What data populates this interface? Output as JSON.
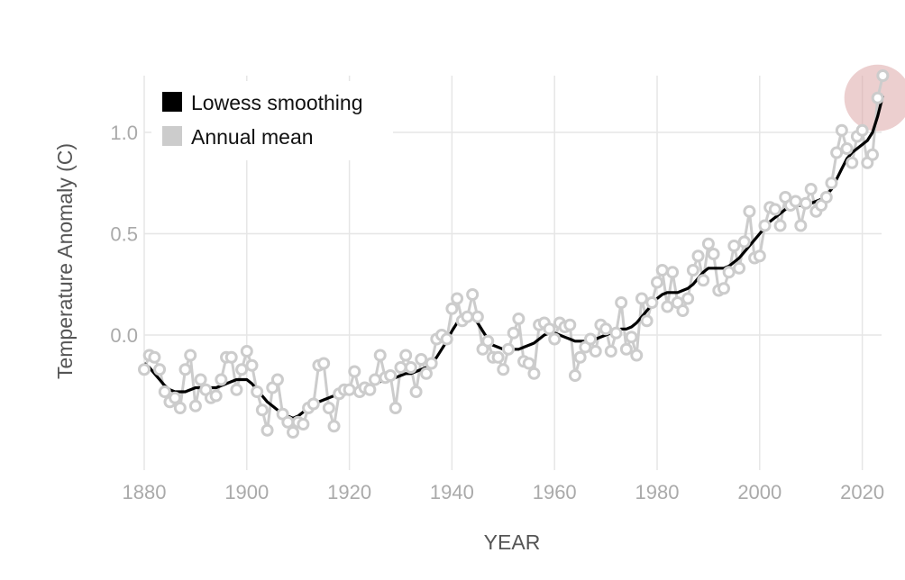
{
  "chart_data": {
    "type": "line",
    "title": "",
    "xlabel": "YEAR",
    "ylabel": "Temperature Anomaly (C)",
    "xlim": [
      1880,
      2024
    ],
    "ylim": [
      -0.6,
      1.3
    ],
    "xticks": [
      1880,
      1900,
      1920,
      1940,
      1960,
      1980,
      2000,
      2020
    ],
    "xtick_labels": [
      "1880",
      "1900",
      "1920",
      "1940",
      "1960",
      "1980",
      "2000",
      "2020"
    ],
    "yticks": [
      0.0,
      0.5,
      1.0
    ],
    "ytick_labels": [
      "0.0",
      "0.5",
      "1.0"
    ],
    "grid": true,
    "legend_position": "top-left",
    "x": [
      1880,
      1881,
      1882,
      1883,
      1884,
      1885,
      1886,
      1887,
      1888,
      1889,
      1890,
      1891,
      1892,
      1893,
      1894,
      1895,
      1896,
      1897,
      1898,
      1899,
      1900,
      1901,
      1902,
      1903,
      1904,
      1905,
      1906,
      1907,
      1908,
      1909,
      1910,
      1911,
      1912,
      1913,
      1914,
      1915,
      1916,
      1917,
      1918,
      1919,
      1920,
      1921,
      1922,
      1923,
      1924,
      1925,
      1926,
      1927,
      1928,
      1929,
      1930,
      1931,
      1932,
      1933,
      1934,
      1935,
      1936,
      1937,
      1938,
      1939,
      1940,
      1941,
      1942,
      1943,
      1944,
      1945,
      1946,
      1947,
      1948,
      1949,
      1950,
      1951,
      1952,
      1953,
      1954,
      1955,
      1956,
      1957,
      1958,
      1959,
      1960,
      1961,
      1962,
      1963,
      1964,
      1965,
      1966,
      1967,
      1968,
      1969,
      1970,
      1971,
      1972,
      1973,
      1974,
      1975,
      1976,
      1977,
      1978,
      1979,
      1980,
      1981,
      1982,
      1983,
      1984,
      1985,
      1986,
      1987,
      1988,
      1989,
      1990,
      1991,
      1992,
      1993,
      1994,
      1995,
      1996,
      1997,
      1998,
      1999,
      2000,
      2001,
      2002,
      2003,
      2004,
      2005,
      2006,
      2007,
      2008,
      2009,
      2010,
      2011,
      2012,
      2013,
      2014,
      2015,
      2016,
      2017,
      2018,
      2019,
      2020,
      2021,
      2022,
      2023,
      2024
    ],
    "series": [
      {
        "name": "Annual mean",
        "color": "#cccccc",
        "values": [
          -0.17,
          -0.1,
          -0.11,
          -0.17,
          -0.28,
          -0.33,
          -0.31,
          -0.36,
          -0.17,
          -0.1,
          -0.35,
          -0.22,
          -0.27,
          -0.31,
          -0.3,
          -0.22,
          -0.11,
          -0.11,
          -0.27,
          -0.17,
          -0.08,
          -0.15,
          -0.28,
          -0.37,
          -0.47,
          -0.26,
          -0.22,
          -0.39,
          -0.43,
          -0.48,
          -0.43,
          -0.44,
          -0.36,
          -0.34,
          -0.15,
          -0.14,
          -0.36,
          -0.45,
          -0.29,
          -0.27,
          -0.27,
          -0.18,
          -0.28,
          -0.26,
          -0.27,
          -0.22,
          -0.1,
          -0.21,
          -0.2,
          -0.36,
          -0.16,
          -0.1,
          -0.16,
          -0.28,
          -0.12,
          -0.19,
          -0.14,
          -0.02,
          0.0,
          -0.02,
          0.13,
          0.18,
          0.07,
          0.09,
          0.2,
          0.09,
          -0.07,
          -0.03,
          -0.11,
          -0.11,
          -0.17,
          -0.07,
          0.01,
          0.08,
          -0.13,
          -0.14,
          -0.19,
          0.05,
          0.06,
          0.03,
          -0.02,
          0.06,
          0.04,
          0.05,
          -0.2,
          -0.11,
          -0.06,
          -0.02,
          -0.08,
          0.05,
          0.03,
          -0.08,
          0.01,
          0.16,
          -0.07,
          -0.01,
          -0.1,
          0.18,
          0.07,
          0.16,
          0.26,
          0.32,
          0.14,
          0.31,
          0.16,
          0.12,
          0.18,
          0.32,
          0.39,
          0.27,
          0.45,
          0.4,
          0.22,
          0.23,
          0.31,
          0.44,
          0.33,
          0.46,
          0.61,
          0.38,
          0.39,
          0.54,
          0.63,
          0.62,
          0.54,
          0.68,
          0.64,
          0.66,
          0.54,
          0.65,
          0.72,
          0.61,
          0.64,
          0.68,
          0.75,
          0.9,
          1.01,
          0.92,
          0.85,
          0.98,
          1.01,
          0.85,
          0.89,
          1.17,
          1.28
        ]
      },
      {
        "name": "Lowess smoothing",
        "color": "#000000",
        "values": [
          -0.14,
          -0.16,
          -0.19,
          -0.22,
          -0.25,
          -0.27,
          -0.28,
          -0.28,
          -0.28,
          -0.27,
          -0.26,
          -0.26,
          -0.26,
          -0.26,
          -0.26,
          -0.25,
          -0.24,
          -0.23,
          -0.22,
          -0.22,
          -0.22,
          -0.24,
          -0.27,
          -0.3,
          -0.33,
          -0.35,
          -0.37,
          -0.39,
          -0.4,
          -0.41,
          -0.4,
          -0.38,
          -0.36,
          -0.34,
          -0.33,
          -0.32,
          -0.31,
          -0.3,
          -0.3,
          -0.29,
          -0.28,
          -0.27,
          -0.26,
          -0.26,
          -0.25,
          -0.24,
          -0.23,
          -0.22,
          -0.21,
          -0.21,
          -0.2,
          -0.19,
          -0.19,
          -0.18,
          -0.17,
          -0.16,
          -0.14,
          -0.11,
          -0.07,
          -0.03,
          0.02,
          0.06,
          0.09,
          0.1,
          0.09,
          0.06,
          0.02,
          -0.02,
          -0.05,
          -0.06,
          -0.07,
          -0.07,
          -0.07,
          -0.07,
          -0.06,
          -0.05,
          -0.04,
          -0.02,
          0.0,
          0.01,
          0.01,
          0.0,
          -0.01,
          -0.02,
          -0.03,
          -0.03,
          -0.03,
          -0.03,
          -0.02,
          -0.01,
          0.0,
          0.01,
          0.02,
          0.03,
          0.03,
          0.04,
          0.06,
          0.09,
          0.12,
          0.15,
          0.18,
          0.2,
          0.21,
          0.21,
          0.21,
          0.22,
          0.23,
          0.25,
          0.28,
          0.31,
          0.33,
          0.33,
          0.33,
          0.33,
          0.34,
          0.36,
          0.38,
          0.41,
          0.44,
          0.47,
          0.5,
          0.53,
          0.56,
          0.58,
          0.6,
          0.62,
          0.63,
          0.64,
          0.64,
          0.64,
          0.65,
          0.66,
          0.67,
          0.69,
          0.72,
          0.77,
          0.82,
          0.87,
          0.9,
          0.92,
          0.94,
          0.96,
          1.0,
          1.08,
          1.18
        ]
      }
    ],
    "highlight": {
      "x": 2023,
      "y": 1.17,
      "color": "#d9a0a0"
    }
  }
}
